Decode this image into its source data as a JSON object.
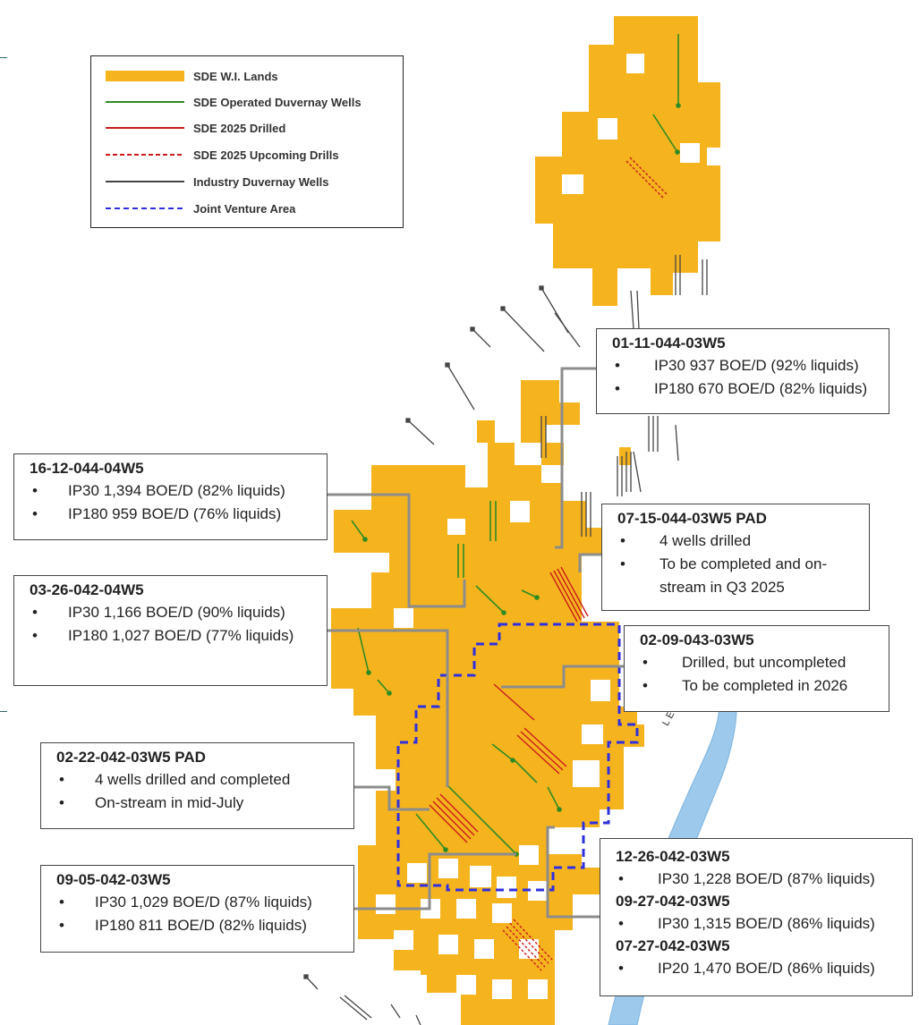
{
  "colors": {
    "lands": "#f5b41e",
    "operated_wells": "#2e8b23",
    "drilled_2025": "#cc1b1b",
    "upcoming_2025": "#cc1b1b",
    "industry_wells": "#444444",
    "joint_venture": "#2f2fe0",
    "reef": "#9cc9ec",
    "connector": "#8c8c8c"
  },
  "legend": {
    "items": [
      {
        "label": "SDE W.I. Lands",
        "symbol": "lands-swatch"
      },
      {
        "label": "SDE Operated Duvernay Wells",
        "symbol": "green-line"
      },
      {
        "label": "SDE 2025 Drilled",
        "symbol": "red-line"
      },
      {
        "label": "SDE 2025 Upcoming Drills",
        "symbol": "red-dashed-line"
      },
      {
        "label": "Industry Duvernay Wells",
        "symbol": "grey-line"
      },
      {
        "label": "Joint Venture Area",
        "symbol": "blue-dashed-line"
      }
    ]
  },
  "reef_label": "LEDUC REEFS",
  "callouts": [
    {
      "id": "01-11-044-03W5",
      "title": "01-11-044-03W5",
      "bullets": [
        "IP30 937 BOE/D (92% liquids)",
        "IP180 670 BOE/D (82% liquids)"
      ]
    },
    {
      "id": "16-12-044-04W5",
      "title": "16-12-044-04W5",
      "bullets": [
        "IP30 1,394 BOE/D (82% liquids)",
        "IP180 959 BOE/D (76% liquids)"
      ]
    },
    {
      "id": "07-15-044-03W5",
      "title": "07-15-044-03W5 PAD",
      "bullets": [
        "4 wells drilled",
        "To be completed and on-stream in Q3 2025"
      ]
    },
    {
      "id": "03-26-042-04W5",
      "title": "03-26-042-04W5",
      "bullets": [
        "IP30 1,166 BOE/D (90% liquids)",
        "IP180 1,027 BOE/D (77% liquids)"
      ]
    },
    {
      "id": "02-09-043-03W5",
      "title": "02-09-043-03W5",
      "bullets": [
        "Drilled, but uncompleted",
        "To be completed in 2026"
      ]
    },
    {
      "id": "02-22-042-03W5",
      "title": "02-22-042-03W5 PAD",
      "bullets": [
        "4 wells drilled and completed",
        "On-stream in mid-July"
      ]
    },
    {
      "id": "09-05-042-03W5",
      "title": "09-05-042-03W5",
      "bullets": [
        "IP30 1,029 BOE/D (87% liquids)",
        "IP180 811 BOE/D (82% liquids)"
      ]
    },
    {
      "id": "multi",
      "groups": [
        {
          "title": "12-26-042-03W5",
          "bullet": "IP30 1,228 BOE/D (87% liquids)"
        },
        {
          "title": "09-27-042-03W5",
          "bullet": "IP30 1,315 BOE/D (86% liquids)"
        },
        {
          "title": "07-27-042-03W5",
          "bullet": "IP20 1,470 BOE/D (86% liquids)"
        }
      ]
    }
  ]
}
